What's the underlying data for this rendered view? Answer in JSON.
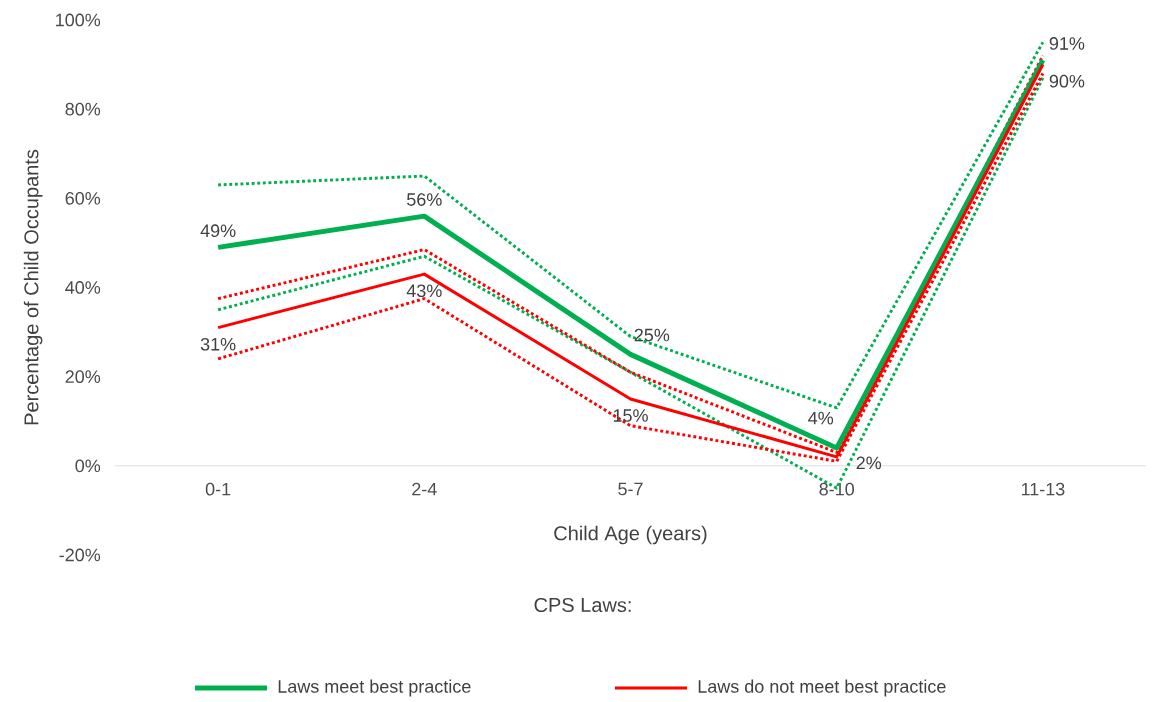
{
  "chart_data": {
    "type": "line",
    "xlabel": "Child Age (years)",
    "ylabel": "Percentage of Child Occupants",
    "legend_title": "CPS Laws:",
    "legend": "bottom",
    "grid": false,
    "marker": "none",
    "categories": [
      "0-1",
      "2-4",
      "5-7",
      "8-10",
      "11-13"
    ],
    "ylim": [
      -20,
      100
    ],
    "yticks": [
      {
        "value": -20,
        "label": "-20%"
      },
      {
        "value": 0,
        "label": "0%"
      },
      {
        "value": 20,
        "label": "20%"
      },
      {
        "value": 40,
        "label": "40%"
      },
      {
        "value": 60,
        "label": "60%"
      },
      {
        "value": 80,
        "label": "80%"
      },
      {
        "value": 100,
        "label": "100%"
      }
    ],
    "series": [
      {
        "name": "Laws meet best practice",
        "color": "#00b050",
        "line_style": "solid",
        "values": [
          49,
          56,
          25,
          4,
          91
        ],
        "value_labels": [
          "49%",
          "56%",
          "25%",
          "4%",
          "91%"
        ]
      },
      {
        "name": "Laws do not meet best practice",
        "color": "#ff0000",
        "line_style": "solid",
        "values": [
          31,
          43,
          15,
          2,
          90
        ],
        "value_labels": [
          "31%",
          "43%",
          "15%",
          "2%",
          "90%"
        ]
      },
      {
        "color": "#00b050",
        "line_style": "dotted",
        "values": [
          63,
          65,
          29,
          13,
          95
        ]
      },
      {
        "color": "#00b050",
        "line_style": "dotted",
        "values": [
          35,
          47,
          21,
          -5,
          87
        ]
      },
      {
        "color": "#ff0000",
        "line_style": "dotted",
        "values": [
          37.5,
          48.5,
          21,
          3,
          92
        ]
      },
      {
        "color": "#ff0000",
        "line_style": "dotted",
        "values": [
          24,
          37.5,
          9,
          1,
          88
        ]
      }
    ]
  }
}
